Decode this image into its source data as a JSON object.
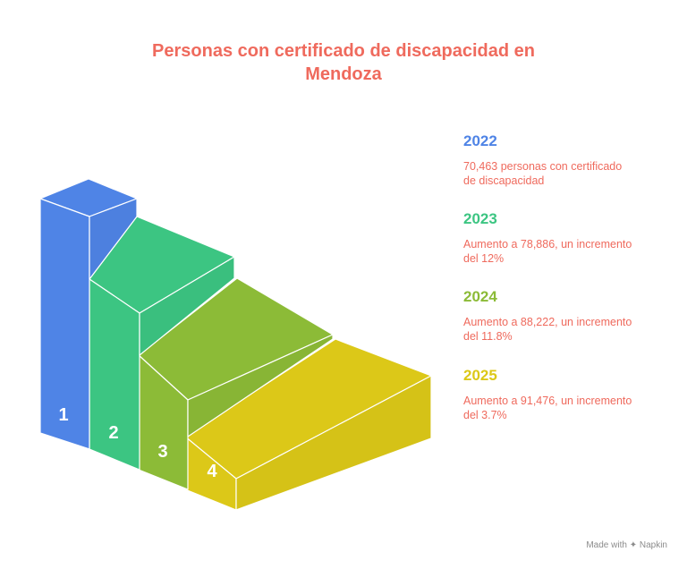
{
  "title": {
    "line1": "Personas con certificado de discapacidad en",
    "line2": "Mendoza"
  },
  "steps": [
    {
      "label": "1",
      "color": "#4f84e6"
    },
    {
      "label": "2",
      "color": "#3cc582"
    },
    {
      "label": "3",
      "color": "#8cbb37"
    },
    {
      "label": "4",
      "color": "#dcc818"
    }
  ],
  "entries": [
    {
      "year": "2022",
      "color": "#4f84e6",
      "text_line1": "70,463 personas con certificado",
      "text_line2": "de discapacidad"
    },
    {
      "year": "2023",
      "color": "#3cc582",
      "text_line1": "Aumento a 78,886, un incremento",
      "text_line2": "del 12%"
    },
    {
      "year": "2024",
      "color": "#8cbb37",
      "text_line1": "Aumento a 88,222, un incremento",
      "text_line2": "del 11.8%"
    },
    {
      "year": "2025",
      "color": "#dcc818",
      "text_line1": "Aumento a 91,476, un incremento",
      "text_line2": "del 3.7%"
    }
  ],
  "footer": {
    "made_with": "Made with",
    "brand": "Napkin"
  }
}
